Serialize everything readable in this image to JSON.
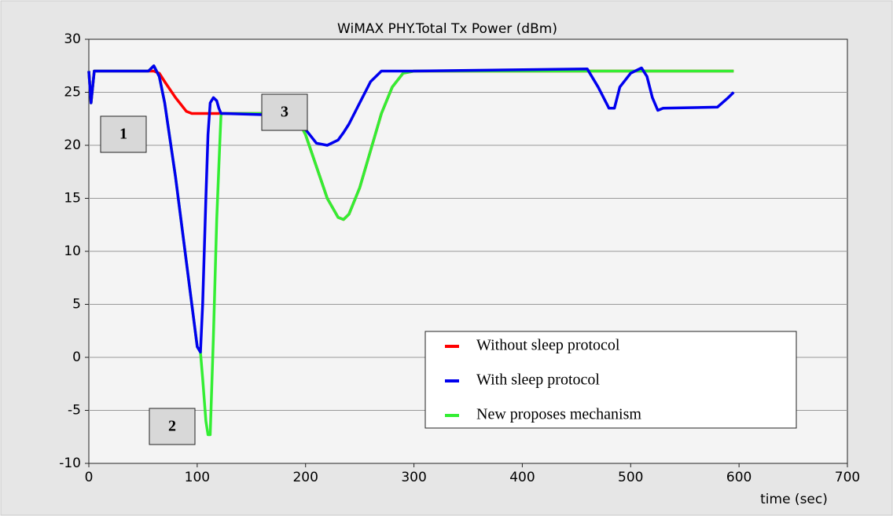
{
  "chart_data": {
    "type": "line",
    "title": "WiMAX PHY.Total Tx Power (dBm)",
    "x_label": "time (sec)",
    "x": [
      0,
      2,
      5,
      55,
      60,
      65,
      70,
      80,
      90,
      95,
      100,
      103,
      105,
      108,
      110,
      112,
      115,
      118,
      120,
      122,
      125,
      190,
      200,
      210,
      220,
      230,
      235,
      240,
      250,
      260,
      270,
      280,
      290,
      300,
      460,
      470,
      480,
      485,
      490,
      500,
      510,
      515,
      520,
      525,
      530,
      580,
      590,
      595
    ],
    "series": [
      {
        "name": "Without sleep protocol",
        "color": "#ff0000",
        "values": [
          27,
          24,
          27,
          27,
          27,
          26.8,
          26,
          24.5,
          23.2,
          23,
          23,
          23,
          23,
          23,
          23,
          23,
          23,
          23,
          23,
          23,
          23,
          23,
          21,
          18,
          15,
          13.2,
          13,
          13.5,
          16,
          19.5,
          23,
          25.5,
          26.8,
          27,
          27,
          27,
          27,
          27,
          27,
          27,
          27,
          27,
          27,
          27,
          27,
          27,
          27,
          27
        ]
      },
      {
        "name": "New proposes mechanism",
        "color": "#33ee33",
        "values": [
          27,
          24,
          27,
          27,
          27.5,
          26.5,
          24,
          17,
          9,
          5,
          1,
          0.5,
          -2,
          -6,
          -7.3,
          -7.3,
          2,
          13,
          18,
          23,
          23,
          23,
          21,
          18,
          15,
          13.2,
          13,
          13.5,
          16,
          19.5,
          23,
          25.5,
          26.8,
          27,
          27,
          27,
          27,
          27,
          27,
          27,
          27,
          27,
          27,
          27,
          27,
          27,
          27,
          27
        ]
      },
      {
        "name": "With sleep protocol",
        "color": "#0000ee",
        "values": [
          27,
          24,
          27,
          27,
          27.5,
          26.5,
          24,
          17,
          9,
          5,
          1,
          0.5,
          5,
          15,
          21,
          24,
          24.5,
          24.2,
          23.5,
          23,
          23,
          22.8,
          21.5,
          20.2,
          20,
          20.5,
          21.2,
          22,
          24,
          26,
          27,
          27,
          27,
          27,
          27.2,
          25.5,
          23.5,
          23.5,
          25.5,
          26.8,
          27.3,
          26.5,
          24.5,
          23.3,
          23.5,
          23.6,
          24.5,
          25
        ]
      }
    ],
    "legend_order": [
      "Without sleep protocol",
      "With sleep protocol",
      "New proposes mechanism"
    ],
    "legend": "lower right",
    "annotations": [
      "1",
      "2",
      "3"
    ],
    "xlim": [
      0,
      700
    ],
    "xticks": [
      0,
      100,
      200,
      300,
      400,
      500,
      600,
      700
    ],
    "ylim": [
      -10,
      30
    ],
    "yticks": [
      -10,
      -5,
      0,
      5,
      10,
      15,
      20,
      25,
      30
    ],
    "grid": "y"
  }
}
